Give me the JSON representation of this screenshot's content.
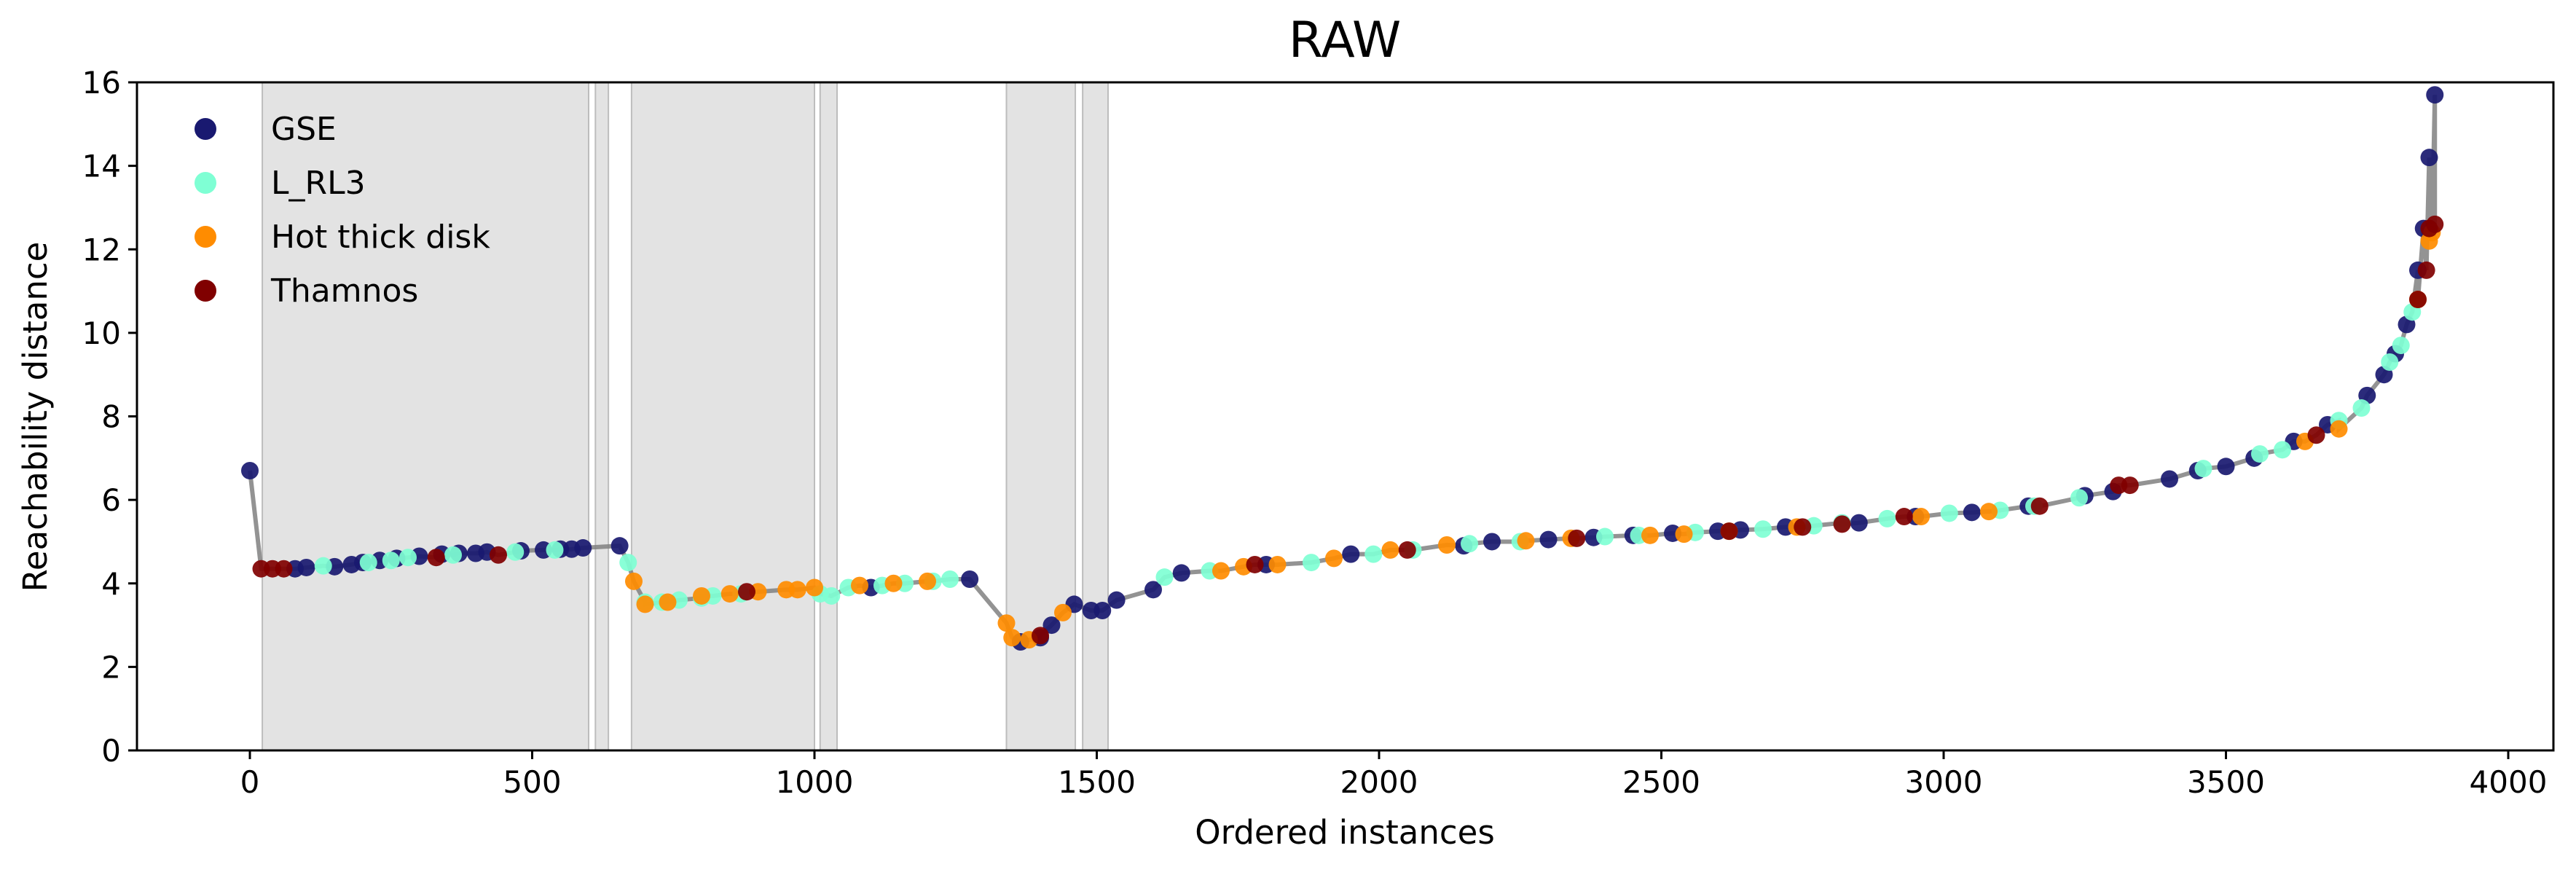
{
  "chart_data": {
    "type": "scatter",
    "title": "RAW",
    "xlabel": "Ordered instances",
    "ylabel": "Reachability distance",
    "xlim": [
      -200,
      4080
    ],
    "ylim": [
      0,
      16
    ],
    "xticks": [
      0,
      500,
      1000,
      1500,
      2000,
      2500,
      3000,
      3500,
      4000
    ],
    "yticks": [
      0,
      2,
      4,
      6,
      8,
      10,
      12,
      14,
      16
    ],
    "grid": false,
    "legend_position": "top-left",
    "legend": [
      {
        "label": "GSE",
        "color": "#191970"
      },
      {
        "label": "L_RL3",
        "color": "#7fffd4"
      },
      {
        "label": "Hot thick disk",
        "color": "#ff8c00"
      },
      {
        "label": "Thamnos",
        "color": "#800000"
      }
    ],
    "colors": {
      "GSE": "#191970",
      "L_RL3": "#7fffd4",
      "Hot thick disk": "#ff8c00",
      "Thamnos": "#800000",
      "noise": "#808080",
      "shade": "#d9d9d9"
    },
    "shaded_regions": [
      [
        22,
        600
      ],
      [
        612,
        635
      ],
      [
        676,
        1000
      ],
      [
        1010,
        1040
      ],
      [
        1340,
        1462
      ],
      [
        1475,
        1520
      ]
    ],
    "series": [
      {
        "name": "GSE",
        "x": [
          0,
          80,
          100,
          150,
          180,
          200,
          230,
          260,
          300,
          340,
          370,
          400,
          420,
          480,
          520,
          550,
          570,
          590,
          655,
          1100,
          1275,
          1365,
          1400,
          1420,
          1460,
          1490,
          1510,
          1535,
          1600,
          1650,
          1800,
          1950,
          2150,
          2200,
          2300,
          2380,
          2450,
          2520,
          2600,
          2640,
          2720,
          2850,
          2950,
          3050,
          3150,
          3250,
          3300,
          3400,
          3450,
          3500,
          3550,
          3620,
          3680,
          3750,
          3780,
          3800,
          3820,
          3840,
          3850,
          3860,
          3870
        ],
        "y": [
          6.7,
          4.35,
          4.38,
          4.4,
          4.45,
          4.5,
          4.55,
          4.6,
          4.65,
          4.7,
          4.72,
          4.72,
          4.75,
          4.78,
          4.8,
          4.82,
          4.82,
          4.85,
          4.9,
          3.9,
          4.1,
          2.6,
          2.7,
          3.0,
          3.5,
          3.35,
          3.35,
          3.6,
          3.85,
          4.25,
          4.45,
          4.7,
          4.9,
          5.0,
          5.05,
          5.1,
          5.15,
          5.2,
          5.25,
          5.28,
          5.35,
          5.45,
          5.6,
          5.7,
          5.85,
          6.1,
          6.2,
          6.5,
          6.7,
          6.8,
          7.0,
          7.4,
          7.8,
          8.5,
          9.0,
          9.5,
          10.2,
          11.5,
          12.5,
          14.2,
          15.7
        ]
      },
      {
        "name": "L_RL3",
        "x": [
          130,
          210,
          250,
          280,
          360,
          470,
          540,
          670,
          700,
          730,
          760,
          800,
          820,
          870,
          1010,
          1030,
          1060,
          1120,
          1160,
          1210,
          1240,
          1620,
          1700,
          1880,
          1990,
          2060,
          2160,
          2250,
          2400,
          2460,
          2560,
          2680,
          2770,
          2820,
          2900,
          3010,
          3100,
          3160,
          3240,
          3460,
          3560,
          3600,
          3700,
          3740,
          3790,
          3810,
          3830
        ],
        "y": [
          4.42,
          4.5,
          4.55,
          4.62,
          4.68,
          4.75,
          4.8,
          4.5,
          3.55,
          3.55,
          3.6,
          3.65,
          3.7,
          3.75,
          3.75,
          3.7,
          3.9,
          3.95,
          4.0,
          4.05,
          4.1,
          4.15,
          4.3,
          4.5,
          4.7,
          4.8,
          4.95,
          5.0,
          5.12,
          5.15,
          5.22,
          5.3,
          5.38,
          5.45,
          5.55,
          5.68,
          5.75,
          5.85,
          6.05,
          6.75,
          7.1,
          7.2,
          7.9,
          8.2,
          9.3,
          9.7,
          10.5
        ]
      },
      {
        "name": "Hot thick disk",
        "x": [
          680,
          700,
          740,
          800,
          850,
          900,
          950,
          970,
          1000,
          1080,
          1140,
          1200,
          1340,
          1350,
          1380,
          1440,
          1720,
          1760,
          1820,
          1920,
          2020,
          2120,
          2260,
          2340,
          2480,
          2540,
          2620,
          2740,
          2960,
          3080,
          3640,
          3700,
          3840,
          3860,
          3865
        ],
        "y": [
          4.05,
          3.5,
          3.55,
          3.7,
          3.75,
          3.8,
          3.85,
          3.85,
          3.9,
          3.95,
          4.0,
          4.05,
          3.05,
          2.7,
          2.65,
          3.3,
          4.3,
          4.4,
          4.45,
          4.6,
          4.8,
          4.92,
          5.02,
          5.08,
          5.15,
          5.18,
          5.25,
          5.35,
          5.6,
          5.72,
          7.4,
          7.7,
          10.8,
          12.2,
          12.4
        ]
      },
      {
        "name": "Thamnos",
        "x": [
          20,
          40,
          60,
          330,
          440,
          880,
          1400,
          1780,
          2050,
          2350,
          2620,
          2750,
          2820,
          2930,
          3170,
          3310,
          3330,
          3660,
          3840,
          3855,
          3860,
          3870
        ],
        "y": [
          4.35,
          4.35,
          4.35,
          4.62,
          4.68,
          3.8,
          2.75,
          4.45,
          4.8,
          5.08,
          5.25,
          5.35,
          5.42,
          5.6,
          5.85,
          6.35,
          6.35,
          7.55,
          10.8,
          11.5,
          12.5,
          12.6
        ]
      }
    ]
  }
}
